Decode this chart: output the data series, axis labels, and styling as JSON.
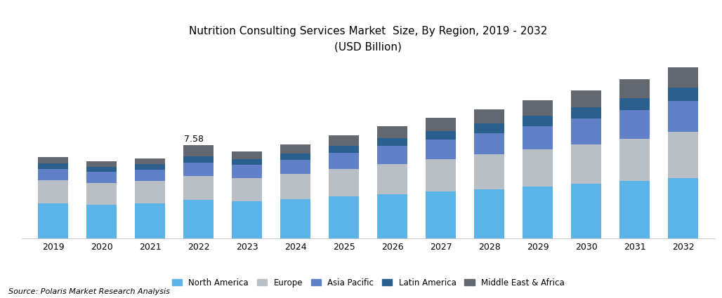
{
  "title_line1": "Nutrition Consulting Services Market  Size, By Region, 2019 - 2032",
  "title_line2": "(USD Billion)",
  "source": "Source: Polaris Market Research Analysis",
  "years": [
    2019,
    2020,
    2021,
    2022,
    2023,
    2024,
    2025,
    2026,
    2027,
    2028,
    2029,
    2030,
    2031,
    2032
  ],
  "annotation_year": 2022,
  "annotation_text": "7.58",
  "regions": [
    "North America",
    "Europe",
    "Asia Pacific",
    "Latin America",
    "Middle East & Africa"
  ],
  "colors": [
    "#5BB3E8",
    "#BABFC6",
    "#6080C8",
    "#2B5F8E",
    "#636870"
  ],
  "data": {
    "North America": [
      2.85,
      2.72,
      2.82,
      3.1,
      3.0,
      3.18,
      3.4,
      3.6,
      3.8,
      4.0,
      4.2,
      4.42,
      4.65,
      4.9
    ],
    "Europe": [
      1.85,
      1.76,
      1.82,
      1.95,
      1.9,
      2.05,
      2.25,
      2.45,
      2.6,
      2.8,
      3.0,
      3.2,
      3.45,
      3.72
    ],
    "Asia Pacific": [
      0.95,
      0.9,
      0.95,
      1.08,
      1.05,
      1.15,
      1.3,
      1.45,
      1.6,
      1.75,
      1.9,
      2.08,
      2.28,
      2.5
    ],
    "Latin America": [
      0.42,
      0.4,
      0.42,
      0.5,
      0.48,
      0.52,
      0.58,
      0.65,
      0.72,
      0.78,
      0.85,
      0.92,
      1.0,
      1.1
    ],
    "Middle East & Africa": [
      0.5,
      0.46,
      0.48,
      0.95,
      0.62,
      0.7,
      0.85,
      0.95,
      1.05,
      1.15,
      1.27,
      1.38,
      1.5,
      1.63
    ]
  },
  "ylim": [
    0,
    14.5
  ],
  "bar_width": 0.62,
  "background_color": "#ffffff",
  "border_color": "#cccccc"
}
